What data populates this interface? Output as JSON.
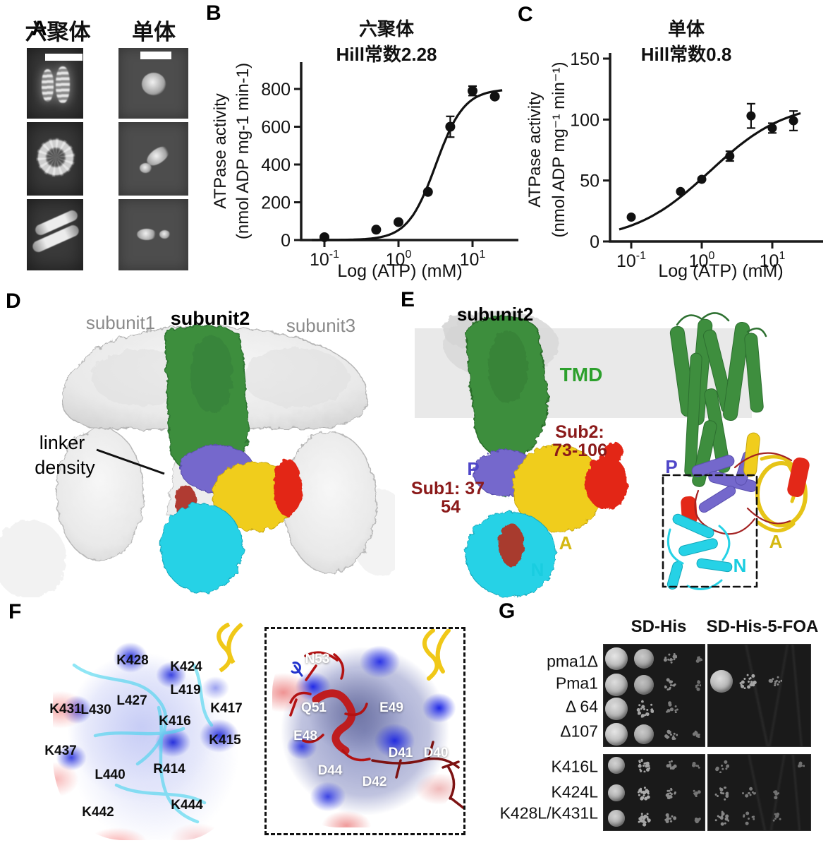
{
  "colors": {
    "green": "#3e8e3e",
    "purple": "#7468cc",
    "yellow": "#f0cd1d",
    "red": "#e32818",
    "cyan": "#26d2e6",
    "dark_red_label": "#8b1a1a",
    "gray_label": "#8a8a8a",
    "blue_label": "#4f46c8",
    "surface_blue": "#2b2fd8",
    "membrane_gray": "#e2e2e2"
  },
  "panels": {
    "A": {
      "letter": "A",
      "col_headers": [
        "六聚体",
        "单体"
      ]
    },
    "B": {
      "letter": "B"
    },
    "C": {
      "letter": "C"
    },
    "D": {
      "letter": "D",
      "labels": {
        "subunit1": "subunit1",
        "subunit2": "subunit2",
        "subunit3": "subunit3",
        "linker_line1": "linker",
        "linker_line2": "density"
      }
    },
    "E": {
      "letter": "E",
      "labels": {
        "subunit2": "subunit2",
        "tmd": "TMD",
        "sub2_line1": "Sub2:",
        "sub2_line2": "73-106",
        "sub1_line1": "Sub1: 37",
        "sub1_line2": "54",
        "p_left": "P",
        "a_left": "A",
        "n_left": "N",
        "p_right": "P",
        "a_right": "A",
        "n_right": "N"
      }
    },
    "F": {
      "letter": "F",
      "left_labels": [
        "K428",
        "K424",
        "L419",
        "K431",
        "L430",
        "L427",
        "K417",
        "K416",
        "K415",
        "K437",
        "L440",
        "R414",
        "K442",
        "K444"
      ],
      "right_labels": [
        "N53",
        "Q51",
        "E49",
        "E48",
        "D44",
        "D42",
        "D41",
        "D40"
      ]
    },
    "G": {
      "letter": "G",
      "col_headers": [
        "SD-His",
        "SD-His-5-FOA"
      ],
      "row_labels_top": [
        "pma1Δ",
        "Pma1",
        "Δ 64",
        "Δ107"
      ],
      "row_labels_bottom": [
        "K416L",
        "K424L",
        "K428L/K431L"
      ],
      "plates": {
        "top_left": {
          "rows": [
            [
              0.95,
              0.8,
              0.3,
              0.06
            ],
            [
              0.9,
              0.75,
              0.35,
              0.06
            ],
            [
              0.9,
              0.6,
              0.18,
              0
            ],
            [
              0.95,
              0.8,
              0.3,
              0.12
            ]
          ]
        },
        "top_right": {
          "rows": [
            [
              0,
              0,
              0,
              0
            ],
            [
              0.9,
              0.6,
              0.25,
              0
            ],
            [
              0,
              0,
              0,
              0
            ],
            [
              0,
              0,
              0,
              0
            ]
          ]
        },
        "bottom_left": {
          "rows": [
            [
              0.85,
              0.6,
              0.25,
              0.05
            ],
            [
              0.85,
              0.65,
              0.35,
              0.1
            ],
            [
              0.85,
              0.6,
              0.3,
              0.1
            ]
          ]
        },
        "bottom_right": {
          "rows": [
            [
              0.12,
              0,
              0,
              0.05
            ],
            [
              0.3,
              0.15,
              0.06,
              0
            ],
            [
              0.3,
              0.12,
              0.04,
              0
            ]
          ]
        }
      }
    }
  },
  "chart_data": [
    {
      "panel": "B",
      "type": "scatter",
      "xscale": "log",
      "title_line1": "六聚体",
      "title_line2": "Hill常数2.28",
      "xlabel": "Log (ATP) (mM)",
      "ylabel_line1": "ATPase activity",
      "ylabel_line2": "(nmol ADP mg-1 min-1)",
      "x": [
        0.1,
        0.5,
        1,
        2.5,
        5,
        10,
        20
      ],
      "y": [
        15,
        55,
        95,
        255,
        600,
        790,
        760
      ],
      "yerr": [
        0,
        0,
        0,
        0,
        55,
        25,
        0
      ],
      "yticks": [
        0,
        200,
        400,
        600,
        800
      ],
      "xtick_exponents": [
        "-1",
        "0",
        "1"
      ],
      "ylim": [
        0,
        900
      ],
      "fit": {
        "model": "hill",
        "vmax": 800,
        "k": 3.2,
        "n": 2.28
      }
    },
    {
      "panel": "C",
      "type": "scatter",
      "xscale": "log",
      "title_line1": "单体",
      "title_line2": "Hill常数0.8",
      "xlabel": "Log (ATP) (mM)",
      "ylabel_line1": "ATPase activity",
      "ylabel_line2": "(nmol ADP mg⁻¹ min⁻¹)",
      "x": [
        0.1,
        0.5,
        1,
        2.5,
        5,
        10,
        20
      ],
      "y": [
        20,
        41,
        51,
        70,
        103,
        93,
        99
      ],
      "yerr": [
        0,
        0,
        0,
        4,
        10,
        4,
        8
      ],
      "yticks": [
        0,
        50,
        100,
        150
      ],
      "xtick_exponents": [
        "-1",
        "0",
        "1"
      ],
      "ylim": [
        0,
        155
      ],
      "fit": {
        "model": "hill",
        "vmax": 115,
        "k": 1.3,
        "n": 0.8
      }
    }
  ]
}
